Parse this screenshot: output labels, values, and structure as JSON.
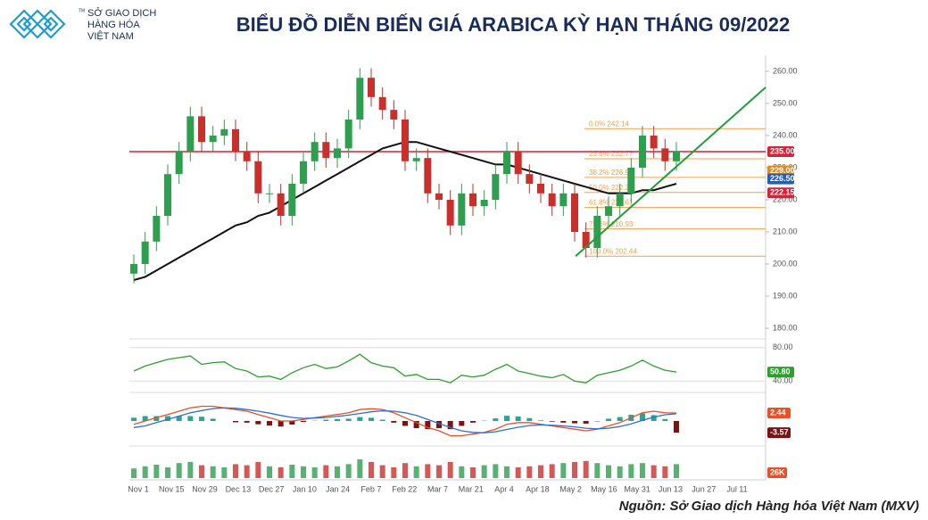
{
  "logo": {
    "lines": [
      "SỞ GIAO DỊCH",
      "HÀNG HÓA",
      "VIỆT NAM"
    ],
    "mark": "TM"
  },
  "chart_data": {
    "type": "candlestick",
    "title": "BIỂU ĐỒ DIỄN BIẾN GIÁ ARABICA KỲ HẠN THÁNG 09/2022",
    "x_tick_labels": [
      "Nov 1",
      "Nov 15",
      "Nov 29",
      "Dec 13",
      "Dec 27",
      "Jan 10",
      "Jan 24",
      "Feb 7",
      "Feb 22",
      "Mar 7",
      "Mar 21",
      "Apr 4",
      "Apr 18",
      "May 2",
      "May 16",
      "May 31",
      "Jun 13",
      "Jun 27",
      "Jul 11"
    ],
    "up_color": "#2e9e4f",
    "down_color": "#c9302c",
    "open": [
      197,
      200,
      207,
      215,
      228,
      235,
      246,
      238,
      240,
      242,
      235,
      232,
      222,
      222,
      215,
      225,
      232,
      238,
      233,
      236,
      245,
      258,
      252,
      248,
      245,
      232,
      233,
      222,
      220,
      212,
      222,
      218,
      220,
      228,
      235,
      228,
      225,
      222,
      218,
      222,
      210,
      205,
      215,
      218,
      222,
      230,
      240,
      236,
      232
    ],
    "high": [
      203,
      210,
      218,
      231,
      238,
      249,
      249,
      243,
      245,
      245,
      238,
      235,
      225,
      225,
      228,
      235,
      241,
      241,
      239,
      248,
      261,
      261,
      255,
      251,
      248,
      236,
      236,
      225,
      223,
      225,
      225,
      223,
      231,
      238,
      238,
      231,
      228,
      225,
      225,
      225,
      213,
      218,
      221,
      225,
      233,
      243,
      243,
      239,
      238
    ],
    "low": [
      194,
      197,
      204,
      212,
      225,
      232,
      235,
      235,
      237,
      232,
      229,
      219,
      219,
      212,
      212,
      222,
      229,
      230,
      230,
      233,
      242,
      249,
      245,
      242,
      229,
      229,
      219,
      217,
      209,
      209,
      215,
      215,
      217,
      225,
      225,
      222,
      219,
      215,
      215,
      207,
      202,
      202,
      212,
      215,
      219,
      227,
      233,
      229,
      229
    ],
    "close": [
      200,
      207,
      215,
      228,
      235,
      246,
      238,
      240,
      242,
      235,
      232,
      222,
      222,
      215,
      225,
      232,
      238,
      233,
      236,
      245,
      258,
      252,
      248,
      245,
      232,
      233,
      222,
      220,
      212,
      222,
      218,
      220,
      228,
      235,
      228,
      225,
      222,
      218,
      222,
      210,
      205,
      215,
      218,
      222,
      230,
      240,
      236,
      232,
      235
    ],
    "ma": {
      "color": "#111111",
      "values": [
        195,
        196,
        198,
        200,
        202,
        204,
        206,
        208,
        210,
        212,
        213,
        215,
        216,
        218,
        220,
        222,
        224,
        226,
        228,
        230,
        232,
        234,
        236,
        237,
        238,
        238,
        237,
        236,
        235,
        234,
        233,
        232,
        231,
        231,
        230,
        229,
        228,
        227,
        226,
        225,
        224,
        223,
        222,
        222,
        222,
        223,
        223,
        224,
        225
      ]
    },
    "ylim": [
      177.5,
      265
    ],
    "yticks": [
      {
        "value": 180,
        "label": "180.00"
      },
      {
        "value": 190,
        "label": "190.00"
      },
      {
        "value": 200,
        "label": "200.00"
      },
      {
        "value": 210,
        "label": "210.00"
      },
      {
        "value": 220,
        "label": "220.00"
      },
      {
        "value": 230,
        "label": "230.00"
      },
      {
        "value": 240,
        "label": "240.00"
      },
      {
        "value": 250,
        "label": "250.00"
      },
      {
        "value": 260,
        "label": "260.00"
      }
    ],
    "reference_line": {
      "value": 235,
      "color": "#d6223a"
    },
    "fib_color": "#f0a04b",
    "fib_levels": [
      {
        "value": 242.14,
        "label": "0.0% 242.14"
      },
      {
        "value": 232.77,
        "label": "23.6% 232.77"
      },
      {
        "value": 226.97,
        "label": "38.2% 226.97"
      },
      {
        "value": 222.29,
        "label": "50.0% 222.29"
      },
      {
        "value": 217.61,
        "label": "61.8% 217.61"
      },
      {
        "value": 210.93,
        "label": "78.6% 210.93"
      },
      {
        "value": 202.44,
        "label": "100.0% 202.44"
      }
    ],
    "trendline": {
      "color": "#1f9e3a",
      "values": [
        202.44,
        255
      ]
    },
    "price_tags": [
      {
        "value": 235,
        "label": "235.00",
        "color": "#d6223a"
      },
      {
        "value": 229,
        "label": "229.00",
        "color": "#e08a1e"
      },
      {
        "value": 226.5,
        "label": "226.50",
        "color": "#1f5fbf"
      },
      {
        "value": 222.15,
        "label": "222.15",
        "color": "#d6223a"
      }
    ],
    "rsi": {
      "color": "#2e9e2e",
      "ylim": [
        35,
        85
      ],
      "yticks": [
        {
          "value": 40,
          "label": "40.00"
        },
        {
          "value": 80,
          "label": "80.00"
        }
      ],
      "values": [
        52,
        58,
        62,
        66,
        68,
        70,
        60,
        62,
        63,
        55,
        52,
        45,
        46,
        42,
        50,
        56,
        60,
        55,
        57,
        64,
        72,
        62,
        58,
        56,
        46,
        48,
        42,
        42,
        38,
        47,
        45,
        47,
        54,
        60,
        52,
        49,
        46,
        44,
        48,
        40,
        38,
        47,
        50,
        53,
        58,
        65,
        58,
        53,
        50.8
      ],
      "tag": {
        "value": 50.8,
        "label": "50.80"
      }
    },
    "macd": {
      "ylim": [
        -6,
        6
      ],
      "macd": {
        "color": "#e8502a",
        "values": [
          -1,
          0,
          1,
          2,
          3,
          4,
          4.5,
          4.5,
          4,
          3.5,
          3,
          2,
          1,
          0,
          0,
          0.5,
          1,
          1.5,
          2,
          2.5,
          3.5,
          3.8,
          3.5,
          2.5,
          1,
          -0.5,
          -2,
          -3,
          -4.5,
          -4.5,
          -4,
          -3.5,
          -2.5,
          -1,
          -0.5,
          -0.5,
          -1,
          -1.5,
          -2,
          -2.5,
          -3,
          -2.5,
          -1.5,
          -0.5,
          1,
          2.5,
          3,
          2.5,
          2.44
        ]
      },
      "signal": {
        "color": "#2f6fd0",
        "values": [
          -2,
          -1.5,
          -0.5,
          0.5,
          1.5,
          2.5,
          3.2,
          3.8,
          4,
          3.9,
          3.5,
          3,
          2.4,
          1.7,
          1.1,
          0.8,
          0.9,
          1.1,
          1.4,
          1.8,
          2.3,
          2.8,
          3.1,
          3,
          2.5,
          1.7,
          0.5,
          -0.8,
          -2,
          -3,
          -3.5,
          -3.6,
          -3.3,
          -2.6,
          -1.9,
          -1.4,
          -1.2,
          -1.3,
          -1.5,
          -1.8,
          -2.2,
          -2.4,
          -2.2,
          -1.7,
          -0.9,
          0.2,
          1.2,
          1.9,
          2.2
        ]
      },
      "histogram": {
        "up_color": "#26a69a",
        "down_color": "#7a1414",
        "values": [
          1,
          1.5,
          1.5,
          1.5,
          1.5,
          1.5,
          1.3,
          0.7,
          0,
          -0.4,
          -0.5,
          -1,
          -1.4,
          -1.7,
          -1.1,
          -0.3,
          0.1,
          0.4,
          0.6,
          0.7,
          1.2,
          1,
          0.4,
          -0.5,
          -1.5,
          -2.2,
          -2.5,
          -2.2,
          -2.5,
          -1.5,
          -0.5,
          0.1,
          0.8,
          1.6,
          1.4,
          0.9,
          0.2,
          -0.2,
          -0.5,
          -0.7,
          -0.8,
          -0.1,
          0.7,
          1.2,
          1.9,
          2.3,
          1.8,
          0.6,
          -3.57
        ]
      },
      "tags": [
        {
          "value": 2.44,
          "label": "2.44",
          "color": "#e8502a"
        },
        {
          "value": -3.57,
          "label": "-3.57",
          "color": "#7a1414"
        }
      ]
    },
    "volume": {
      "ylim": [
        0,
        40
      ],
      "values": [
        18,
        22,
        25,
        20,
        28,
        30,
        24,
        22,
        20,
        26,
        24,
        30,
        22,
        20,
        25,
        22,
        20,
        24,
        22,
        26,
        35,
        30,
        24,
        20,
        28,
        22,
        26,
        24,
        30,
        22,
        20,
        24,
        26,
        22,
        20,
        22,
        24,
        26,
        28,
        30,
        32,
        28,
        24,
        22,
        26,
        28,
        24,
        22,
        26
      ],
      "tag": "26K",
      "tag_color": "#e8502a"
    }
  },
  "source": "Nguồn: Sở Giao dịch Hàng hóa Việt Nam (MXV)"
}
